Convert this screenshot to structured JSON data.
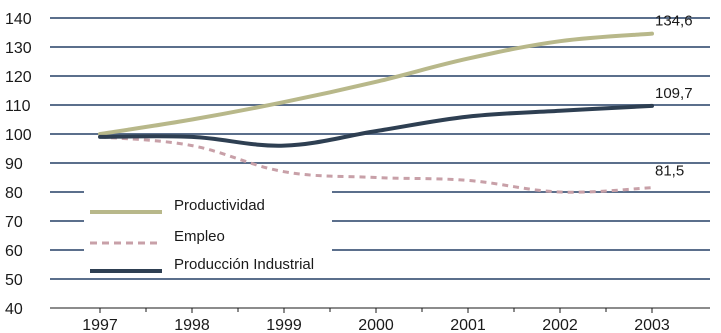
{
  "chart_data": {
    "type": "line",
    "categories": [
      "1997",
      "1998",
      "1999",
      "2000",
      "2001",
      "2002",
      "2003"
    ],
    "ylim": [
      40,
      140
    ],
    "yticks": [
      40,
      50,
      60,
      70,
      80,
      90,
      100,
      110,
      120,
      130,
      140
    ],
    "grid": true,
    "legend_position": "lower-left",
    "series": [
      {
        "name": "Productividad",
        "color": "#b8b88a",
        "dash": "solid",
        "values": [
          100,
          105,
          111,
          118,
          126,
          132,
          134.6
        ],
        "end_label": "134,6"
      },
      {
        "name": "Empleo",
        "color": "#c8a0a8",
        "dash": "dashed",
        "values": [
          99,
          96,
          87,
          85,
          84,
          80,
          81.5
        ],
        "end_label": "81,5"
      },
      {
        "name": "Producción Industrial",
        "color": "#2e3f52",
        "dash": "solid",
        "values": [
          99,
          99,
          96,
          101,
          106,
          108,
          109.7
        ],
        "end_label": "109,7"
      }
    ]
  }
}
